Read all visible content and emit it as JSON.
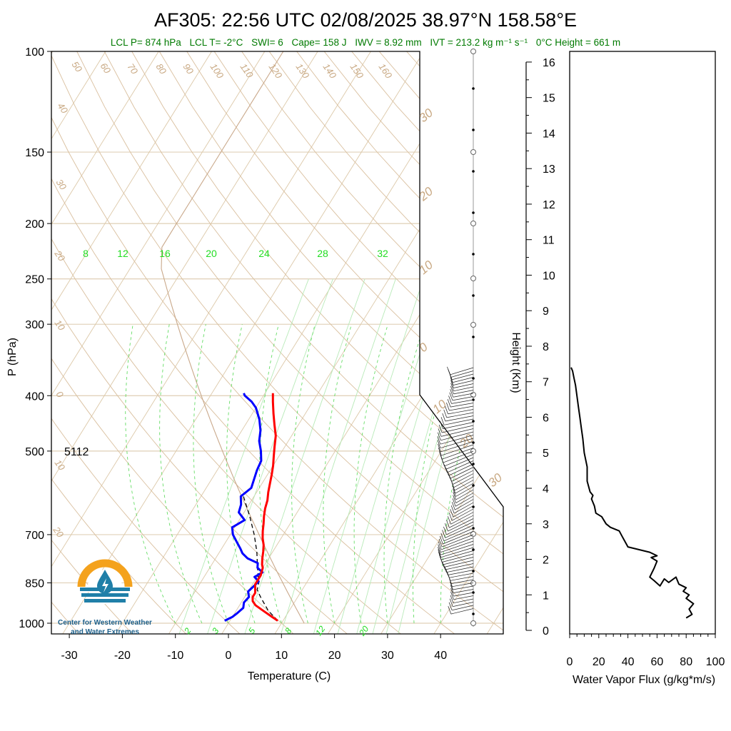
{
  "title": "AF305: 22:56 UTC 02/08/2025  38.97°N 158.58°E",
  "stats": {
    "lcl_p": "LCL P= 874 hPa",
    "lcl_t": "LCL T= -2°C",
    "swi": "SWI= 6",
    "cape": "Cape= 158 J",
    "iwv": "IWV = 8.92 mm",
    "ivt": "IVT = 213.2 kg m⁻¹ s⁻¹",
    "zero_height": "0°C Height = 661 m"
  },
  "height_500": "5112",
  "logo": {
    "line1": "Center for Western Weather",
    "line2": "and Water Extremes"
  },
  "chart_data": [
    {
      "type": "line",
      "name": "skew-t",
      "xlabel": "Temperature (C)",
      "ylabel": "P (hPa)",
      "x_ticks": [
        -30,
        -20,
        -10,
        0,
        10,
        20,
        30,
        40
      ],
      "y_ticks": [
        100,
        150,
        200,
        250,
        300,
        400,
        500,
        700,
        850,
        1000
      ],
      "y_log": true,
      "mixing_ratio_labels": [
        "8",
        "12",
        "16",
        "20",
        "24",
        "28",
        "32"
      ],
      "mixing_ratio_labels_bottom": [
        "2",
        "3",
        "5",
        "8",
        "12",
        "20"
      ],
      "temperature": {
        "p": [
          990,
          975,
          960,
          945,
          930,
          915,
          900,
          885,
          870,
          855,
          840,
          825,
          810,
          800,
          790,
          770,
          750,
          730,
          710,
          690,
          670,
          650,
          630,
          610,
          590,
          570,
          550,
          530,
          510,
          490,
          470,
          450,
          430,
          410,
          396
        ],
        "t": [
          9,
          7.5,
          6,
          4.5,
          3,
          2,
          1.5,
          1.5,
          1,
          0.5,
          0.5,
          0.5,
          0.2,
          0,
          -0.5,
          -1.2,
          -1.8,
          -2.5,
          -3.5,
          -4.3,
          -5,
          -5.8,
          -6.5,
          -7,
          -7.8,
          -8.5,
          -9.2,
          -10,
          -11,
          -12,
          -13,
          -14.5,
          -16,
          -17.5,
          -18.5
        ]
      },
      "dewpoint": {
        "p": [
          990,
          975,
          960,
          940,
          920,
          900,
          880,
          860,
          845,
          830,
          815,
          800,
          785,
          770,
          755,
          740,
          720,
          700,
          680,
          660,
          640,
          620,
          600,
          580,
          560,
          540,
          520,
          500,
          480,
          460,
          440,
          420,
          410,
          400,
          396
        ],
        "t": [
          -1,
          0,
          0.5,
          1,
          0.5,
          0.8,
          0,
          0.5,
          0.8,
          -0.5,
          0.5,
          -1,
          -1.5,
          -4,
          -5.5,
          -6.5,
          -8,
          -9.5,
          -10.5,
          -9,
          -11,
          -11.5,
          -12.5,
          -11.5,
          -12,
          -12.5,
          -12.8,
          -14,
          -15.5,
          -16.5,
          -18,
          -20,
          -21.5,
          -23.5,
          -24
        ]
      },
      "parcel": {
        "p": [
          990,
          950,
          900,
          874,
          850,
          800,
          750,
          700,
          650,
          600
        ],
        "t": [
          9,
          6,
          3,
          1.5,
          1,
          -1,
          -3,
          -5.5,
          -8.5,
          -12
        ]
      }
    },
    {
      "type": "line",
      "name": "water-vapor-flux",
      "xlabel": "Water Vapor Flux (g/kg*m/s)",
      "ylabel": "Height (Km)",
      "x_ticks": [
        0,
        20,
        40,
        60,
        80,
        100
      ],
      "y_ticks": [
        0,
        1,
        2,
        3,
        4,
        5,
        6,
        7,
        8,
        9,
        10,
        11,
        12,
        13,
        14,
        15,
        16
      ],
      "xlim": [
        0,
        100
      ],
      "ylim": [
        -0.1,
        16.3
      ],
      "x": [
        80,
        84,
        82,
        85,
        80,
        82,
        78,
        80,
        75,
        73,
        68,
        65,
        62,
        58,
        55,
        58,
        60,
        56,
        60,
        55,
        50,
        45,
        40,
        38,
        36,
        34,
        28,
        25,
        22,
        18,
        17,
        15,
        16,
        14,
        12,
        12,
        10,
        9,
        8,
        7,
        6,
        5,
        4,
        3,
        2,
        1
      ],
      "y": [
        0.35,
        0.45,
        0.6,
        0.75,
        0.9,
        1.0,
        1.1,
        1.2,
        1.3,
        1.5,
        1.35,
        1.45,
        1.25,
        1.4,
        1.5,
        1.75,
        1.95,
        2.05,
        2.1,
        2.2,
        2.25,
        2.3,
        2.35,
        2.5,
        2.65,
        2.8,
        2.9,
        3.0,
        3.2,
        3.3,
        3.5,
        3.7,
        3.8,
        3.9,
        4.2,
        4.6,
        5.0,
        5.4,
        5.7,
        6.0,
        6.3,
        6.6,
        6.9,
        7.1,
        7.3,
        7.4
      ]
    }
  ]
}
